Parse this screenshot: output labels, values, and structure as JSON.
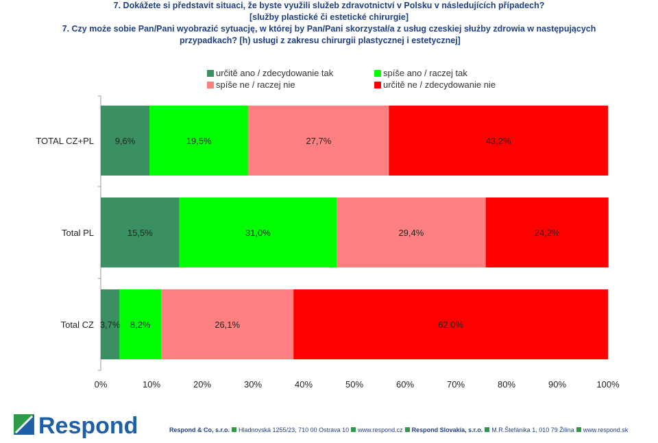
{
  "header": {
    "line1": "7. Dokážete si představit situaci, že byste využili služeb zdravotnictví v Polsku v následujících případech?",
    "line2": "[služby plastické či estetické chirurgie]",
    "line3": "7. Czy może sobie Pan/Pani wyobrazić sytuację, w której by Pan/Pani skorzystał/a z usług czeskiej służby zdrowia w następujących",
    "line4": "przypadkach? [h) usługi z zakresu chirurgii plastycznej i estetycznej]"
  },
  "chart_data": {
    "type": "bar",
    "orientation": "horizontal",
    "stacked": "100%",
    "categories": [
      "TOTAL CZ+PL",
      "Total PL",
      "Total CZ"
    ],
    "series": [
      {
        "name": "určitě ano / zdecydowanie tak",
        "color": "#3a9063",
        "values": [
          9.6,
          15.5,
          3.7
        ],
        "labels": [
          "9,6%",
          "15,5%",
          "3,7%"
        ]
      },
      {
        "name": "spíše ano / raczej tak",
        "color": "#00ff00",
        "values": [
          19.5,
          31.0,
          8.2
        ],
        "labels": [
          "19,5%",
          "31,0%",
          "8,2%"
        ]
      },
      {
        "name": "spíše ne / raczej nie",
        "color": "#ff8080",
        "values": [
          27.7,
          29.4,
          26.1
        ],
        "labels": [
          "27,7%",
          "29,4%",
          "26,1%"
        ]
      },
      {
        "name": "určitě ne / zdecydowanie nie",
        "color": "#ff0000",
        "values": [
          43.2,
          24.2,
          62.0
        ],
        "labels": [
          "43,2%",
          "24,2%",
          "62,0%"
        ]
      }
    ],
    "xlim": [
      0,
      100
    ],
    "xticks": [
      "0%",
      "10%",
      "20%",
      "30%",
      "40%",
      "50%",
      "60%",
      "70%",
      "80%",
      "90%",
      "100%"
    ],
    "legend": "top",
    "grid": false
  },
  "footer": {
    "logo_text": "Respond",
    "company1": "Respond & Co, s.r.o.",
    "address1": "Hladnovská 1255/23, 710 00  Ostrava 10",
    "web1": "www.respond.cz",
    "company2": "Respond Slovakia, s.r.o.",
    "address2": "M.R.Štefánika 1, 010 79  Žilina",
    "web2": "www.respond.sk"
  }
}
